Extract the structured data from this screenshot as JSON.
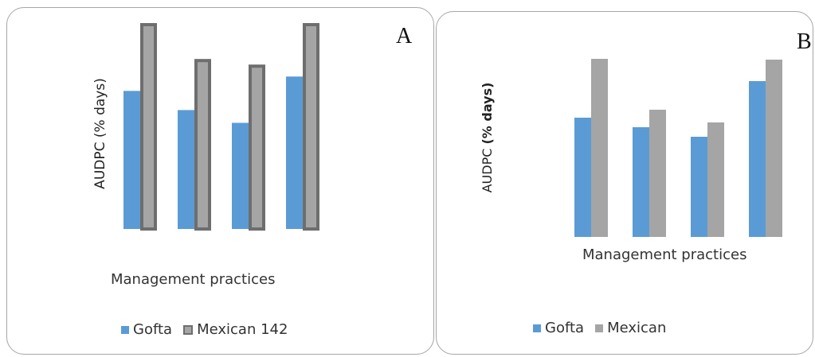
{
  "chart_data": [
    {
      "type": "bar",
      "panel_label": "A",
      "ylabel": "AUDPC (% days)",
      "xlabel": "Management practices",
      "categories": [
        "",
        "",
        "",
        ""
      ],
      "series": [
        {
          "name": "Gofta",
          "values": [
            173,
            149,
            133,
            191
          ],
          "color": "#5b9bd5"
        },
        {
          "name": "Mexican 142",
          "values": [
            258,
            213,
            206,
            258
          ],
          "color": "#a5a5a5",
          "outline": "#6e6e6e"
        }
      ],
      "ylim": [
        0,
        258
      ],
      "grid": false,
      "legend_position": "bottom"
    },
    {
      "type": "bar",
      "panel_label": "B",
      "ylabel": "AUDPC (% days)",
      "xlabel": "Management practices",
      "categories": [
        "",
        "",
        "",
        ""
      ],
      "series": [
        {
          "name": "Gofta",
          "values": [
            150,
            138,
            126,
            196
          ],
          "color": "#5b9bd5"
        },
        {
          "name": "Mexican",
          "values": [
            224,
            160,
            144,
            223
          ],
          "color": "#a5a5a5"
        }
      ],
      "ylim": [
        0,
        240
      ],
      "grid": false,
      "legend_position": "bottom"
    }
  ]
}
